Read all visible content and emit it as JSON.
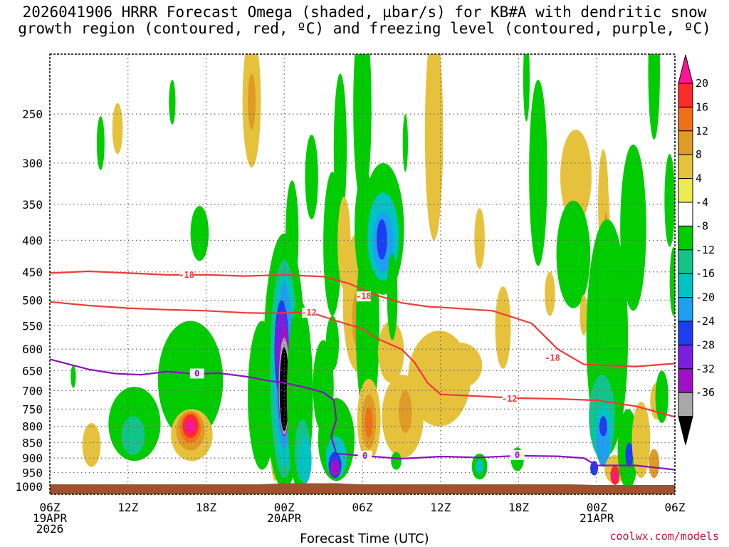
{
  "chart_data": {
    "type": "heatmap",
    "title": "2026041906 HRRR Forecast Omega (shaded, µbar/s) for KB#A with dendritic snow\ngrowth region (contoured, red, ºC) and freezing level (contoured, purple, ºC)",
    "xlabel": "Forecast Time (UTC)",
    "ylabel": "",
    "x_ticks": [
      {
        "hour": 0,
        "lines": [
          "06Z",
          "19APR",
          "2026"
        ]
      },
      {
        "hour": 6,
        "lines": [
          "12Z"
        ]
      },
      {
        "hour": 12,
        "lines": [
          "18Z"
        ]
      },
      {
        "hour": 18,
        "lines": [
          "00Z",
          "20APR"
        ]
      },
      {
        "hour": 24,
        "lines": [
          "06Z"
        ]
      },
      {
        "hour": 30,
        "lines": [
          "12Z"
        ]
      },
      {
        "hour": 36,
        "lines": [
          "18Z"
        ]
      },
      {
        "hour": 42,
        "lines": [
          "00Z",
          "21APR"
        ]
      },
      {
        "hour": 48,
        "lines": [
          "06Z"
        ]
      }
    ],
    "xlim": [
      0,
      48
    ],
    "y_ticks": [
      250,
      300,
      350,
      400,
      450,
      500,
      550,
      600,
      650,
      700,
      750,
      800,
      850,
      900,
      950,
      1000
    ],
    "ylim": [
      1030,
      200
    ],
    "grid": true,
    "colorbar": {
      "labels": [
        "20",
        "16",
        "12",
        "8",
        "4",
        "-4",
        "-8",
        "-12",
        "-16",
        "-20",
        "-24",
        "-28",
        "-32",
        "-36"
      ],
      "colors": [
        "#ff1493",
        "#ff2a2a",
        "#f07018",
        "#e09a28",
        "#e6c23c",
        "#ecec50",
        "#ffffff",
        "#00cc00",
        "#12c48a",
        "#00c4c4",
        "#1ea0f0",
        "#1e3cf0",
        "#7a1ee0",
        "#a010c8",
        "#a8a8a8",
        "#000000"
      ]
    },
    "contours": [
      {
        "value": "-18",
        "color": "#ee3a3a",
        "points": [
          [
            0,
            452
          ],
          [
            3,
            449
          ],
          [
            6,
            452
          ],
          [
            9,
            455
          ],
          [
            12,
            455
          ],
          [
            15,
            457
          ],
          [
            18,
            455
          ],
          [
            21,
            458
          ],
          [
            23,
            470
          ],
          [
            25,
            490
          ],
          [
            27,
            505
          ],
          [
            29,
            512
          ],
          [
            31,
            515
          ],
          [
            34,
            520
          ],
          [
            37,
            545
          ],
          [
            39,
            600
          ],
          [
            41,
            635
          ],
          [
            43,
            638
          ],
          [
            45,
            640
          ],
          [
            48,
            633
          ]
        ],
        "labels": [
          {
            "x": 10.5,
            "y": 455
          },
          {
            "x": 24.1,
            "y": 493
          },
          {
            "x": 38.6,
            "y": 620
          }
        ]
      },
      {
        "value": "-12",
        "color": "#ee3a3a",
        "points": [
          [
            0,
            503
          ],
          [
            3,
            510
          ],
          [
            6,
            515
          ],
          [
            9,
            518
          ],
          [
            12,
            520
          ],
          [
            15,
            524
          ],
          [
            17,
            525
          ],
          [
            18,
            524
          ],
          [
            20,
            523
          ],
          [
            22,
            540
          ],
          [
            24,
            556
          ],
          [
            25,
            575
          ],
          [
            27,
            600
          ],
          [
            28,
            630
          ],
          [
            29,
            680
          ],
          [
            30,
            710
          ],
          [
            33,
            715
          ],
          [
            36,
            720
          ],
          [
            39,
            722
          ],
          [
            42,
            726
          ],
          [
            45,
            742
          ],
          [
            48,
            772
          ]
        ],
        "labels": [
          {
            "x": 19.9,
            "y": 524
          },
          {
            "x": 35.3,
            "y": 722
          }
        ]
      },
      {
        "value": "0",
        "color": "#8810c0",
        "points": [
          [
            0,
            623
          ],
          [
            3,
            647
          ],
          [
            5,
            657
          ],
          [
            7,
            660
          ],
          [
            9,
            652
          ],
          [
            11,
            658
          ],
          [
            13,
            656
          ],
          [
            15,
            664
          ],
          [
            17,
            676
          ],
          [
            18,
            680
          ],
          [
            20,
            695
          ],
          [
            21,
            705
          ],
          [
            21.8,
            725
          ],
          [
            22,
            780
          ],
          [
            21.6,
            830
          ],
          [
            22,
            885
          ],
          [
            24,
            892
          ],
          [
            27,
            902
          ],
          [
            30,
            895
          ],
          [
            33,
            898
          ],
          [
            36,
            892
          ],
          [
            39,
            894
          ],
          [
            41,
            900
          ],
          [
            42,
            925
          ],
          [
            45,
            925
          ],
          [
            48,
            940
          ]
        ],
        "labels": [
          {
            "x": 11.3,
            "y": 657
          },
          {
            "x": 24.2,
            "y": 892
          },
          {
            "x": 35.9,
            "y": 890
          }
        ]
      }
    ],
    "annotations": [],
    "credit": "coolwx.com/models"
  },
  "blobs": [
    {
      "c": "#00cc00",
      "x": 3.9,
      "y": 280,
      "rx": 0.3,
      "ry": 28
    },
    {
      "c": "#e6c23c",
      "x": 5.2,
      "y": 265,
      "rx": 0.4,
      "ry": 25
    },
    {
      "c": "#00cc00",
      "x": 9.4,
      "y": 240,
      "rx": 0.25,
      "ry": 20
    },
    {
      "c": "#00cc00",
      "x": 1.8,
      "y": 665,
      "rx": 0.2,
      "ry": 28
    },
    {
      "c": "#e6c23c",
      "x": 3.2,
      "y": 860,
      "rx": 0.7,
      "ry": 70
    },
    {
      "c": "#00cc00",
      "x": 6.5,
      "y": 800,
      "rx": 2.0,
      "ry": 110
    },
    {
      "c": "#12c48a",
      "x": 6.4,
      "y": 830,
      "rx": 0.9,
      "ry": 60
    },
    {
      "c": "#00cc00",
      "x": 10.8,
      "y": 690,
      "rx": 2.5,
      "ry": 150
    },
    {
      "c": "#e6c23c",
      "x": 10.9,
      "y": 830,
      "rx": 1.6,
      "ry": 80
    },
    {
      "c": "#e09a28",
      "x": 10.8,
      "y": 815,
      "rx": 1.1,
      "ry": 60
    },
    {
      "c": "#f07018",
      "x": 10.8,
      "y": 805,
      "rx": 0.8,
      "ry": 45
    },
    {
      "c": "#ff2a2a",
      "x": 10.8,
      "y": 800,
      "rx": 0.6,
      "ry": 35
    },
    {
      "c": "#ff1493",
      "x": 10.8,
      "y": 800,
      "rx": 0.4,
      "ry": 22
    },
    {
      "c": "#00cc00",
      "x": 11.5,
      "y": 392,
      "rx": 0.7,
      "ry": 40
    },
    {
      "c": "#e6c23c",
      "x": 15.5,
      "y": 245,
      "rx": 0.7,
      "ry": 60
    },
    {
      "c": "#e09a28",
      "x": 15.5,
      "y": 240,
      "rx": 0.3,
      "ry": 25
    },
    {
      "c": "#00cc00",
      "x": 16.3,
      "y": 740,
      "rx": 1.1,
      "ry": 200
    },
    {
      "c": "#e6c23c",
      "x": 17.3,
      "y": 780,
      "rx": 0.5,
      "ry": 200
    },
    {
      "c": "#ff2a2a",
      "x": 17.4,
      "y": 780,
      "rx": 0.35,
      "ry": 130
    },
    {
      "c": "#ff1493",
      "x": 17.4,
      "y": 740,
      "rx": 0.2,
      "ry": 60
    },
    {
      "c": "#00cc00",
      "x": 18.6,
      "y": 400,
      "rx": 0.5,
      "ry": 80
    },
    {
      "c": "#00cc00",
      "x": 18.4,
      "y": 520,
      "rx": 0.6,
      "ry": 120
    },
    {
      "c": "#00cc00",
      "x": 18.0,
      "y": 700,
      "rx": 1.6,
      "ry": 310
    },
    {
      "c": "#12c48a",
      "x": 18.0,
      "y": 700,
      "rx": 1.1,
      "ry": 270
    },
    {
      "c": "#00c4c4",
      "x": 18.0,
      "y": 690,
      "rx": 0.85,
      "ry": 240
    },
    {
      "c": "#1ea0f0",
      "x": 18.0,
      "y": 670,
      "rx": 0.7,
      "ry": 200
    },
    {
      "c": "#1e3cf0",
      "x": 17.8,
      "y": 610,
      "rx": 0.55,
      "ry": 110
    },
    {
      "c": "#7a1ee0",
      "x": 17.8,
      "y": 595,
      "rx": 0.5,
      "ry": 75
    },
    {
      "c": "#a010c8",
      "x": 18.0,
      "y": 690,
      "rx": 0.5,
      "ry": 140
    },
    {
      "c": "#a8a8a8",
      "x": 18.0,
      "y": 700,
      "rx": 0.42,
      "ry": 125
    },
    {
      "c": "#000000",
      "x": 18.0,
      "y": 705,
      "rx": 0.35,
      "ry": 110
    },
    {
      "c": "#e6c23c",
      "x": 18.9,
      "y": 650,
      "rx": 0.5,
      "ry": 60
    },
    {
      "c": "#00cc00",
      "x": 19.2,
      "y": 760,
      "rx": 1.0,
      "ry": 260
    },
    {
      "c": "#12c48a",
      "x": 19.4,
      "y": 880,
      "rx": 0.6,
      "ry": 100
    },
    {
      "c": "#00c4c4",
      "x": 19.6,
      "y": 910,
      "rx": 0.5,
      "ry": 80
    },
    {
      "c": "#00cc00",
      "x": 20.1,
      "y": 320,
      "rx": 0.5,
      "ry": 50
    },
    {
      "c": "#00cc00",
      "x": 21.7,
      "y": 420,
      "rx": 0.7,
      "ry": 110
    },
    {
      "c": "#00cc00",
      "x": 21.0,
      "y": 700,
      "rx": 0.8,
      "ry": 120
    },
    {
      "c": "#00cc00",
      "x": 22.0,
      "y": 850,
      "rx": 1.4,
      "ry": 130
    },
    {
      "c": "#00c4c4",
      "x": 22.0,
      "y": 900,
      "rx": 0.8,
      "ry": 70
    },
    {
      "c": "#1e3cf0",
      "x": 21.9,
      "y": 925,
      "rx": 0.5,
      "ry": 45
    },
    {
      "c": "#a010c8",
      "x": 21.9,
      "y": 935,
      "rx": 0.35,
      "ry": 30
    },
    {
      "c": "#00cc00",
      "x": 21.7,
      "y": 590,
      "rx": 0.5,
      "ry": 60
    },
    {
      "c": "#00cc00",
      "x": 22.3,
      "y": 295,
      "rx": 0.5,
      "ry": 80
    },
    {
      "c": "#e6c23c",
      "x": 22.6,
      "y": 410,
      "rx": 0.5,
      "ry": 70
    },
    {
      "c": "#e6c23c",
      "x": 23.6,
      "y": 520,
      "rx": 1.1,
      "ry": 130
    },
    {
      "c": "#e09a28",
      "x": 23.7,
      "y": 540,
      "rx": 0.5,
      "ry": 60
    },
    {
      "c": "#00cc00",
      "x": 24.2,
      "y": 390,
      "rx": 0.8,
      "ry": 80
    },
    {
      "c": "#00cc00",
      "x": 24.4,
      "y": 590,
      "rx": 0.9,
      "ry": 200
    },
    {
      "c": "#e6c23c",
      "x": 24.5,
      "y": 790,
      "rx": 0.9,
      "ry": 120
    },
    {
      "c": "#e09a28",
      "x": 24.5,
      "y": 790,
      "rx": 0.55,
      "ry": 80
    },
    {
      "c": "#f07018",
      "x": 24.5,
      "y": 790,
      "rx": 0.3,
      "ry": 45
    },
    {
      "c": "#00cc00",
      "x": 24.0,
      "y": 260,
      "rx": 0.7,
      "ry": 90
    },
    {
      "c": "#00cc00",
      "x": 25.6,
      "y": 395,
      "rx": 1.6,
      "ry": 95
    },
    {
      "c": "#00c4c4",
      "x": 25.6,
      "y": 400,
      "rx": 1.2,
      "ry": 65
    },
    {
      "c": "#1ea0f0",
      "x": 25.6,
      "y": 405,
      "rx": 0.8,
      "ry": 45
    },
    {
      "c": "#1e3cf0",
      "x": 25.5,
      "y": 400,
      "rx": 0.4,
      "ry": 30
    },
    {
      "c": "#00cc00",
      "x": 27.3,
      "y": 280,
      "rx": 0.2,
      "ry": 30
    },
    {
      "c": "#e6c23c",
      "x": 26.2,
      "y": 610,
      "rx": 1.0,
      "ry": 70
    },
    {
      "c": "#00cc00",
      "x": 26.3,
      "y": 500,
      "rx": 0.4,
      "ry": 80
    },
    {
      "c": "#e6c23c",
      "x": 27.1,
      "y": 780,
      "rx": 1.6,
      "ry": 120
    },
    {
      "c": "#e09a28",
      "x": 27.3,
      "y": 760,
      "rx": 0.5,
      "ry": 60
    },
    {
      "c": "#00cc00",
      "x": 26.6,
      "y": 910,
      "rx": 0.4,
      "ry": 30
    },
    {
      "c": "#e6c23c",
      "x": 29.9,
      "y": 680,
      "rx": 2.4,
      "ry": 120
    },
    {
      "c": "#e6c23c",
      "x": 31.4,
      "y": 640,
      "rx": 1.8,
      "ry": 55
    },
    {
      "c": "#e6c23c",
      "x": 29.5,
      "y": 290,
      "rx": 0.7,
      "ry": 110
    },
    {
      "c": "#e6c23c",
      "x": 33.0,
      "y": 400,
      "rx": 0.4,
      "ry": 45
    },
    {
      "c": "#00cc00",
      "x": 33.0,
      "y": 930,
      "rx": 0.6,
      "ry": 45
    },
    {
      "c": "#00c4c4",
      "x": 33.0,
      "y": 930,
      "rx": 0.3,
      "ry": 25
    },
    {
      "c": "#e6c23c",
      "x": 34.8,
      "y": 560,
      "rx": 0.6,
      "ry": 85
    },
    {
      "c": "#00cc00",
      "x": 37.5,
      "y": 330,
      "rx": 0.7,
      "ry": 110
    },
    {
      "c": "#e6c23c",
      "x": 38.4,
      "y": 490,
      "rx": 0.4,
      "ry": 40
    },
    {
      "c": "#00cc00",
      "x": 36.6,
      "y": 222,
      "rx": 0.25,
      "ry": 35
    },
    {
      "c": "#00cc00",
      "x": 35.9,
      "y": 905,
      "rx": 0.5,
      "ry": 40
    },
    {
      "c": "#e6c23c",
      "x": 40.4,
      "y": 320,
      "rx": 1.2,
      "ry": 55
    },
    {
      "c": "#00cc00",
      "x": 40.2,
      "y": 430,
      "rx": 1.3,
      "ry": 85
    },
    {
      "c": "#e6c23c",
      "x": 41.0,
      "y": 530,
      "rx": 0.3,
      "ry": 40
    },
    {
      "c": "#e6c23c",
      "x": 42.5,
      "y": 355,
      "rx": 0.4,
      "ry": 70
    },
    {
      "c": "#e6c23c",
      "x": 42.7,
      "y": 440,
      "rx": 0.35,
      "ry": 120
    },
    {
      "c": "#e09a28",
      "x": 42.7,
      "y": 420,
      "rx": 0.2,
      "ry": 60
    },
    {
      "c": "#00cc00",
      "x": 42.8,
      "y": 630,
      "rx": 1.6,
      "ry": 260
    },
    {
      "c": "#12c48a",
      "x": 42.4,
      "y": 780,
      "rx": 1.0,
      "ry": 120
    },
    {
      "c": "#00c4c4",
      "x": 42.5,
      "y": 830,
      "rx": 0.7,
      "ry": 90
    },
    {
      "c": "#1ea0f0",
      "x": 42.5,
      "y": 860,
      "rx": 0.5,
      "ry": 70
    },
    {
      "c": "#1e3cf0",
      "x": 42.5,
      "y": 800,
      "rx": 0.3,
      "ry": 30
    },
    {
      "c": "#1e3cf0",
      "x": 41.8,
      "y": 935,
      "rx": 0.3,
      "ry": 25
    },
    {
      "c": "#e6c23c",
      "x": 43.4,
      "y": 940,
      "rx": 0.8,
      "ry": 50
    },
    {
      "c": "#ff2a2a",
      "x": 43.4,
      "y": 960,
      "rx": 0.35,
      "ry": 35
    },
    {
      "c": "#ff1493",
      "x": 43.4,
      "y": 965,
      "rx": 0.2,
      "ry": 20
    },
    {
      "c": "#00cc00",
      "x": 44.8,
      "y": 400,
      "rx": 1.0,
      "ry": 120
    },
    {
      "c": "#00cc00",
      "x": 44.4,
      "y": 880,
      "rx": 0.8,
      "ry": 130
    },
    {
      "c": "#1e3cf0",
      "x": 44.5,
      "y": 890,
      "rx": 0.3,
      "ry": 40
    },
    {
      "c": "#e6c23c",
      "x": 45.4,
      "y": 850,
      "rx": 0.7,
      "ry": 120
    },
    {
      "c": "#e09a28",
      "x": 46.4,
      "y": 920,
      "rx": 0.4,
      "ry": 50
    },
    {
      "c": "#e6c23c",
      "x": 46.6,
      "y": 730,
      "rx": 0.5,
      "ry": 50
    },
    {
      "c": "#00cc00",
      "x": 46.4,
      "y": 220,
      "rx": 0.45,
      "ry": 55
    },
    {
      "c": "#00cc00",
      "x": 47.6,
      "y": 350,
      "rx": 0.4,
      "ry": 60
    },
    {
      "c": "#00cc00",
      "x": 47.0,
      "y": 720,
      "rx": 0.5,
      "ry": 70
    },
    {
      "c": "#00cc00",
      "x": 47.9,
      "y": 470,
      "rx": 0.3,
      "ry": 60
    }
  ]
}
